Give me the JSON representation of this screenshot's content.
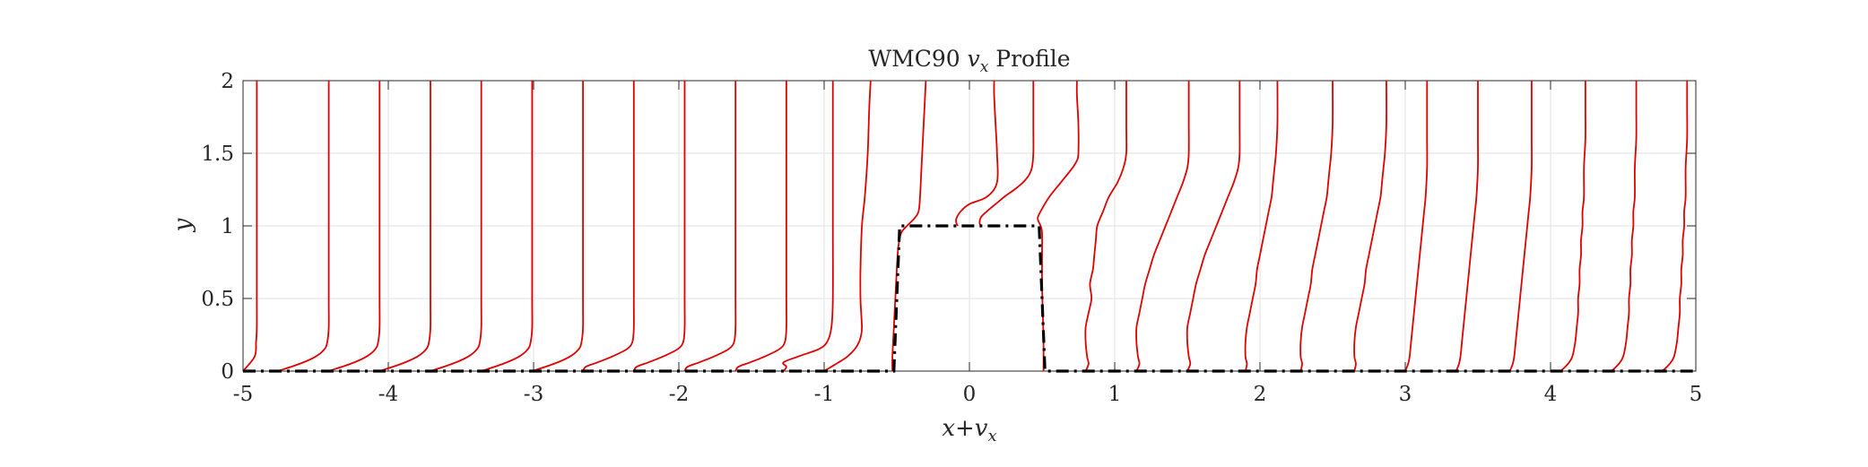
{
  "chart_data": {
    "type": "line",
    "title": "WMC90 v_x Profile",
    "title_parts": {
      "prefix": "WMC90 ",
      "var": "v",
      "sub": "x",
      "suffix": " Profile"
    },
    "xlabel": "x+v_x",
    "xlabel_parts": {
      "a": "x",
      "plus": "+",
      "b": "v",
      "sub": "x"
    },
    "ylabel": "y",
    "xlim": [
      -5,
      5
    ],
    "ylim": [
      0,
      2
    ],
    "xticks": [
      -5,
      -4,
      -3,
      -2,
      -1,
      0,
      1,
      2,
      3,
      4,
      5
    ],
    "yticks": [
      0,
      0.5,
      1,
      1.5,
      2
    ],
    "xtick_labels": [
      "-5",
      "-4",
      "-3",
      "-2",
      "-1",
      "0",
      "1",
      "2",
      "3",
      "4",
      "5"
    ],
    "ytick_labels": [
      "0",
      "0.5",
      "1",
      "1.5",
      "2"
    ],
    "grid": true,
    "colors": {
      "profile": "#e00000",
      "geometry": "#000000",
      "grid": "#e2e2e2",
      "axis": "#262626"
    },
    "geometry_outline": {
      "x": [
        -5,
        -0.52,
        -0.48,
        0.48,
        0.52,
        5
      ],
      "y": [
        0,
        0,
        1,
        1,
        0,
        0
      ]
    },
    "profiles": [
      {
        "station": -5.0,
        "y": [
          0,
          0.1,
          0.2,
          0.3,
          0.5,
          0.8,
          1.2,
          1.6,
          2.0
        ],
        "v": [
          0,
          0.08,
          0.09,
          0.095,
          0.095,
          0.095,
          0.095,
          0.095,
          0.095
        ]
      },
      {
        "station": -4.76,
        "y": [
          0,
          0.05,
          0.1,
          0.15,
          0.2,
          0.3,
          0.5,
          1.0,
          1.5,
          2.0
        ],
        "v": [
          0,
          0.15,
          0.26,
          0.32,
          0.34,
          0.35,
          0.35,
          0.35,
          0.35,
          0.35
        ]
      },
      {
        "station": -4.41,
        "y": [
          0,
          0.05,
          0.1,
          0.15,
          0.2,
          0.3,
          0.5,
          1.0,
          1.5,
          2.0
        ],
        "v": [
          0,
          0.15,
          0.26,
          0.32,
          0.34,
          0.35,
          0.35,
          0.35,
          0.35,
          0.35
        ]
      },
      {
        "station": -4.06,
        "y": [
          0,
          0.05,
          0.1,
          0.15,
          0.2,
          0.3,
          0.5,
          1.0,
          1.5,
          2.0
        ],
        "v": [
          0,
          0.15,
          0.26,
          0.32,
          0.34,
          0.35,
          0.35,
          0.35,
          0.35,
          0.35
        ]
      },
      {
        "station": -3.71,
        "y": [
          0,
          0.05,
          0.1,
          0.15,
          0.2,
          0.3,
          0.5,
          1.0,
          1.5,
          2.0
        ],
        "v": [
          0,
          0.15,
          0.26,
          0.32,
          0.34,
          0.35,
          0.35,
          0.35,
          0.35,
          0.35
        ]
      },
      {
        "station": -3.36,
        "y": [
          0,
          0.05,
          0.1,
          0.15,
          0.2,
          0.3,
          0.5,
          1.0,
          1.5,
          2.0
        ],
        "v": [
          0,
          0.15,
          0.26,
          0.32,
          0.34,
          0.35,
          0.35,
          0.35,
          0.35,
          0.35
        ]
      },
      {
        "station": -3.01,
        "y": [
          0,
          0.05,
          0.1,
          0.15,
          0.2,
          0.3,
          0.5,
          1.0,
          1.5,
          2.0
        ],
        "v": [
          0,
          0.15,
          0.26,
          0.32,
          0.34,
          0.35,
          0.35,
          0.35,
          0.35,
          0.35
        ]
      },
      {
        "station": -2.66,
        "y": [
          0,
          0.03,
          0.06,
          0.1,
          0.15,
          0.2,
          0.3,
          0.5,
          1.0,
          1.5,
          2.0
        ],
        "v": [
          0,
          0.02,
          0.1,
          0.2,
          0.3,
          0.34,
          0.35,
          0.35,
          0.35,
          0.35,
          0.35
        ]
      },
      {
        "station": -2.31,
        "y": [
          0,
          0.03,
          0.06,
          0.1,
          0.15,
          0.2,
          0.3,
          0.5,
          1.0,
          1.5,
          2.0
        ],
        "v": [
          0,
          0.02,
          0.1,
          0.2,
          0.3,
          0.34,
          0.35,
          0.35,
          0.35,
          0.35,
          0.35
        ]
      },
      {
        "station": -1.96,
        "y": [
          0,
          0.03,
          0.06,
          0.1,
          0.15,
          0.2,
          0.3,
          0.5,
          1.0,
          1.5,
          2.0
        ],
        "v": [
          0,
          0.02,
          0.1,
          0.2,
          0.3,
          0.34,
          0.35,
          0.35,
          0.35,
          0.35,
          0.35
        ]
      },
      {
        "station": -1.61,
        "y": [
          0,
          0.03,
          0.06,
          0.1,
          0.15,
          0.2,
          0.3,
          0.5,
          1.0,
          1.5,
          2.0
        ],
        "v": [
          0,
          0.02,
          0.1,
          0.2,
          0.3,
          0.34,
          0.35,
          0.35,
          0.35,
          0.35,
          0.35
        ]
      },
      {
        "station": -1.28,
        "y": [
          0,
          0.03,
          0.06,
          0.1,
          0.15,
          0.2,
          0.3,
          0.5,
          1.0,
          1.5,
          2.0
        ],
        "v": [
          0,
          0.02,
          0.0,
          0.1,
          0.24,
          0.3,
          0.33,
          0.34,
          0.34,
          0.34,
          0.34
        ]
      },
      {
        "station": -1.0,
        "y": [
          0,
          0.03,
          0.06,
          0.1,
          0.15,
          0.2,
          0.25,
          0.3,
          0.4,
          0.5,
          0.7,
          1.0,
          1.2,
          1.5,
          1.8,
          2.0
        ],
        "v": [
          0,
          0.05,
          0.1,
          0.16,
          0.21,
          0.24,
          0.255,
          0.26,
          0.255,
          0.25,
          0.25,
          0.26,
          0.28,
          0.3,
          0.31,
          0.32
        ]
      },
      {
        "station": -0.53,
        "y": [
          0,
          0.1,
          0.3,
          0.5,
          0.7,
          0.85,
          0.95,
          1.0,
          1.05,
          1.1,
          1.2,
          1.4,
          1.6,
          1.8,
          2.0
        ],
        "v": [
          0,
          0.0,
          0.01,
          0.02,
          0.03,
          0.04,
          0.06,
          0.1,
          0.15,
          0.18,
          0.19,
          0.2,
          0.21,
          0.22,
          0.23
        ]
      },
      {
        "station": -0.08,
        "y": [
          1.0,
          1.02,
          1.05,
          1.1,
          1.15,
          1.2,
          1.3,
          1.5,
          1.7,
          1.9,
          2.0
        ],
        "v": [
          0,
          -0.01,
          -0.01,
          0.02,
          0.08,
          0.2,
          0.27,
          0.27,
          0.26,
          0.25,
          0.25
        ]
      },
      {
        "station": 0.08,
        "y": [
          1.0,
          1.02,
          1.06,
          1.1,
          1.15,
          1.2,
          1.25,
          1.3,
          1.35,
          1.4,
          1.5,
          1.7,
          1.9,
          2.0
        ],
        "v": [
          0,
          -0.01,
          0.0,
          0.04,
          0.1,
          0.16,
          0.23,
          0.29,
          0.33,
          0.35,
          0.36,
          0.36,
          0.36,
          0.36
        ]
      },
      {
        "station": 0.45,
        "y": [
          0,
          0.2,
          0.4,
          0.6,
          0.8,
          0.95,
          1.0,
          1.05,
          1.1,
          1.2,
          1.3,
          1.4,
          1.45,
          1.5,
          1.7,
          1.9,
          2.0
        ],
        "v": [
          0.06,
          0.06,
          0.055,
          0.05,
          0.05,
          0.05,
          0.04,
          0.02,
          0.04,
          0.1,
          0.18,
          0.26,
          0.29,
          0.3,
          0.3,
          0.29,
          0.29
        ]
      },
      {
        "station": 0.8,
        "y": [
          0,
          0.05,
          0.1,
          0.2,
          0.3,
          0.4,
          0.5,
          0.6,
          0.7,
          0.8,
          0.9,
          1.0,
          1.1,
          1.2,
          1.3,
          1.4,
          1.5,
          1.7,
          2.0
        ],
        "v": [
          0,
          0.02,
          0.01,
          0.0,
          0.0,
          0.02,
          0.04,
          0.03,
          0.05,
          0.06,
          0.07,
          0.08,
          0.12,
          0.16,
          0.22,
          0.26,
          0.28,
          0.28,
          0.28
        ]
      },
      {
        "station": 1.15,
        "y": [
          0,
          0.05,
          0.1,
          0.2,
          0.3,
          0.4,
          0.5,
          0.6,
          0.7,
          0.8,
          0.9,
          1.0,
          1.1,
          1.2,
          1.3,
          1.4,
          1.5,
          1.7,
          2.0
        ],
        "v": [
          0,
          0.02,
          0.01,
          0.0,
          0.0,
          0.02,
          0.04,
          0.06,
          0.09,
          0.12,
          0.16,
          0.2,
          0.24,
          0.28,
          0.32,
          0.35,
          0.36,
          0.36,
          0.36
        ]
      },
      {
        "station": 1.5,
        "y": [
          0,
          0.05,
          0.1,
          0.2,
          0.3,
          0.4,
          0.5,
          0.6,
          0.7,
          0.8,
          0.9,
          1.0,
          1.1,
          1.2,
          1.3,
          1.4,
          1.5,
          1.7,
          2.0
        ],
        "v": [
          0,
          0.02,
          0.01,
          0.0,
          0.0,
          0.02,
          0.04,
          0.06,
          0.09,
          0.12,
          0.16,
          0.2,
          0.24,
          0.28,
          0.32,
          0.35,
          0.36,
          0.36,
          0.36
        ]
      },
      {
        "station": 1.9,
        "y": [
          0,
          0.05,
          0.1,
          0.2,
          0.3,
          0.4,
          0.5,
          0.6,
          0.7,
          0.8,
          0.9,
          1.0,
          1.1,
          1.2,
          1.3,
          1.4,
          1.5,
          1.7,
          2.0
        ],
        "v": [
          0,
          0.01,
          0.0,
          0.0,
          0.01,
          0.03,
          0.05,
          0.07,
          0.08,
          0.1,
          0.12,
          0.14,
          0.16,
          0.18,
          0.19,
          0.2,
          0.21,
          0.22,
          0.22
        ]
      },
      {
        "station": 2.28,
        "y": [
          0,
          0.05,
          0.1,
          0.2,
          0.3,
          0.4,
          0.5,
          0.6,
          0.7,
          0.8,
          0.9,
          1.0,
          1.1,
          1.2,
          1.3,
          1.4,
          1.5,
          1.7,
          2.0
        ],
        "v": [
          0,
          0.01,
          0.0,
          0.0,
          0.01,
          0.03,
          0.05,
          0.07,
          0.08,
          0.1,
          0.12,
          0.14,
          0.16,
          0.18,
          0.19,
          0.2,
          0.21,
          0.22,
          0.22
        ]
      },
      {
        "station": 2.65,
        "y": [
          0,
          0.05,
          0.1,
          0.2,
          0.3,
          0.4,
          0.5,
          0.6,
          0.7,
          0.8,
          0.9,
          1.0,
          1.1,
          1.2,
          1.3,
          1.4,
          1.5,
          1.7,
          2.0
        ],
        "v": [
          0,
          0.01,
          0.0,
          0.0,
          0.01,
          0.03,
          0.05,
          0.07,
          0.08,
          0.1,
          0.12,
          0.14,
          0.16,
          0.18,
          0.19,
          0.2,
          0.21,
          0.22,
          0.22
        ]
      },
      {
        "station": 3.0,
        "y": [
          0,
          0.05,
          0.1,
          0.2,
          0.3,
          0.4,
          0.5,
          0.6,
          0.7,
          0.8,
          0.9,
          1.0,
          1.1,
          1.2,
          1.4,
          1.6,
          1.8,
          2.0
        ],
        "v": [
          0,
          0.02,
          0.03,
          0.04,
          0.05,
          0.06,
          0.07,
          0.08,
          0.09,
          0.1,
          0.11,
          0.12,
          0.13,
          0.14,
          0.15,
          0.15,
          0.15,
          0.15
        ]
      },
      {
        "station": 3.35,
        "y": [
          0,
          0.05,
          0.1,
          0.2,
          0.3,
          0.4,
          0.5,
          0.6,
          0.7,
          0.8,
          0.9,
          1.0,
          1.1,
          1.2,
          1.4,
          1.6,
          1.8,
          2.0
        ],
        "v": [
          0,
          0.02,
          0.03,
          0.04,
          0.05,
          0.06,
          0.07,
          0.08,
          0.09,
          0.1,
          0.11,
          0.12,
          0.13,
          0.14,
          0.15,
          0.15,
          0.15,
          0.15
        ]
      },
      {
        "station": 3.72,
        "y": [
          0,
          0.05,
          0.1,
          0.2,
          0.3,
          0.4,
          0.5,
          0.6,
          0.7,
          0.8,
          0.9,
          1.0,
          1.1,
          1.2,
          1.4,
          1.6,
          1.8,
          2.0
        ],
        "v": [
          0,
          0.02,
          0.03,
          0.04,
          0.05,
          0.06,
          0.07,
          0.08,
          0.09,
          0.1,
          0.11,
          0.12,
          0.13,
          0.14,
          0.15,
          0.15,
          0.15,
          0.15
        ]
      },
      {
        "station": 4.07,
        "y": [
          0,
          0.05,
          0.1,
          0.2,
          0.3,
          0.4,
          0.5,
          0.6,
          0.7,
          0.8,
          0.9,
          1.0,
          1.1,
          1.2,
          1.4,
          1.6,
          1.8,
          2.0
        ],
        "v": [
          0,
          0.05,
          0.08,
          0.1,
          0.11,
          0.12,
          0.12,
          0.13,
          0.13,
          0.14,
          0.14,
          0.15,
          0.15,
          0.16,
          0.16,
          0.17,
          0.17,
          0.17
        ]
      },
      {
        "station": 4.42,
        "y": [
          0,
          0.05,
          0.1,
          0.2,
          0.3,
          0.4,
          0.5,
          0.6,
          0.7,
          0.8,
          0.9,
          1.0,
          1.1,
          1.2,
          1.4,
          1.6,
          1.8,
          2.0
        ],
        "v": [
          0,
          0.05,
          0.08,
          0.1,
          0.11,
          0.12,
          0.12,
          0.13,
          0.13,
          0.14,
          0.14,
          0.15,
          0.15,
          0.16,
          0.16,
          0.17,
          0.17,
          0.17
        ]
      },
      {
        "station": 4.77,
        "y": [
          0,
          0.05,
          0.1,
          0.2,
          0.3,
          0.4,
          0.5,
          0.6,
          0.7,
          0.8,
          0.9,
          1.0,
          1.1,
          1.2,
          1.4,
          1.6,
          1.8,
          2.0
        ],
        "v": [
          0,
          0.05,
          0.08,
          0.1,
          0.11,
          0.12,
          0.12,
          0.13,
          0.13,
          0.14,
          0.14,
          0.15,
          0.15,
          0.16,
          0.16,
          0.17,
          0.17,
          0.17
        ]
      }
    ]
  }
}
